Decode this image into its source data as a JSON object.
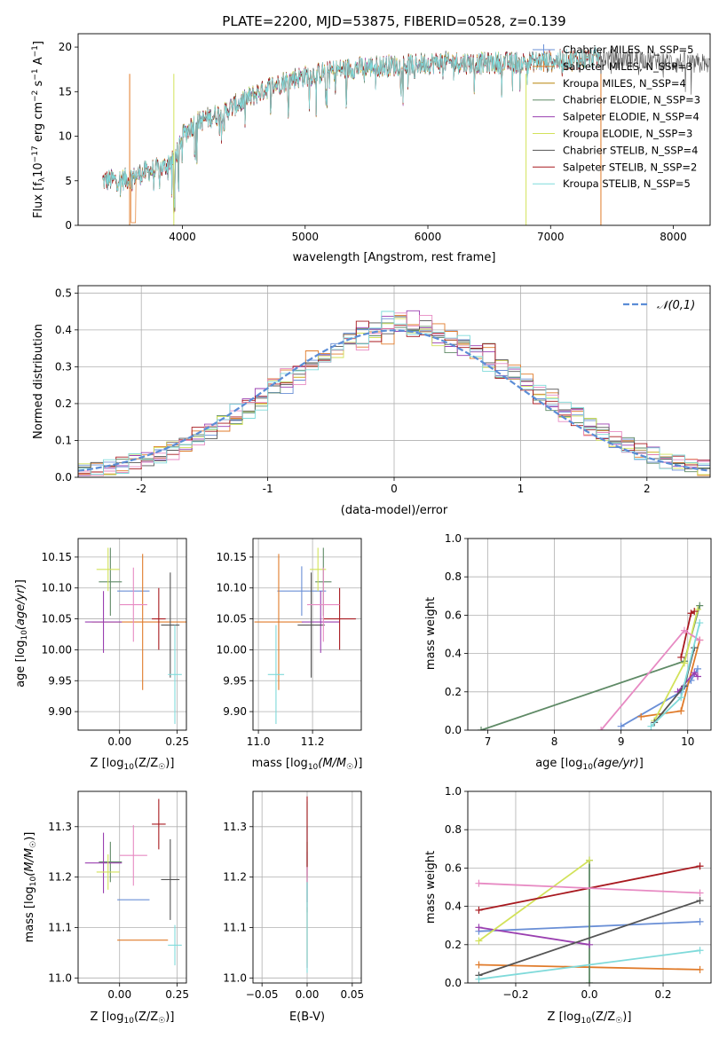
{
  "figure_title": "PLATE=2200, MJD=53875, FIBERID=0528, z=0.139",
  "colors": {
    "palette": [
      "#6a8fd6",
      "#e07b2a",
      "#5f8a66",
      "#9a3fb0",
      "#d2e25a",
      "#555555",
      "#a8191f",
      "#e78ac3",
      "#7fdada"
    ],
    "ncurve": "#5b8dd6",
    "grid": "#b0b0b0"
  },
  "chart_data": [
    {
      "id": "spectrum",
      "type": "line",
      "title": "PLATE=2200, MJD=53875, FIBERID=0528, z=0.139",
      "xlabel": "wavelength [Angstrom, rest frame]",
      "ylabel": "Flux [f_λ 10^-17 erg cm^-2 s^-1 A^-1]",
      "xlim": [
        3150,
        8300
      ],
      "ylim": [
        0,
        21.5
      ],
      "xticks": [
        4000,
        5000,
        6000,
        7000,
        8000
      ],
      "yticks": [
        0,
        5,
        10,
        15,
        20
      ],
      "grid": false,
      "legend_position": "top-right",
      "series": [
        {
          "name": "Chabrier MILES, N_SSP=5",
          "color": "#6a8fd6",
          "range": [
            3350,
            7400
          ]
        },
        {
          "name": "Salpeter MILES, N_SSP=3",
          "color": "#e07b2a",
          "range": [
            3350,
            7400
          ]
        },
        {
          "name": "Kroupa MILES, N_SSP=4",
          "color": "#b8860b",
          "range": [
            3350,
            7400
          ]
        },
        {
          "name": "Chabrier ELODIE, N_SSP=3",
          "color": "#5f8a66",
          "range": [
            3350,
            6800
          ]
        },
        {
          "name": "Salpeter ELODIE, N_SSP=4",
          "color": "#9a3fb0",
          "range": [
            3350,
            6800
          ]
        },
        {
          "name": "Kroupa ELODIE, N_SSP=3",
          "color": "#d2e25a",
          "range": [
            3350,
            6800
          ]
        },
        {
          "name": "Chabrier STELIB, N_SSP=4",
          "color": "#555555",
          "range": [
            3350,
            8300
          ]
        },
        {
          "name": "Salpeter STELIB, N_SSP=2",
          "color": "#a8191f",
          "range": [
            3350,
            7400
          ]
        },
        {
          "name": "Kroupa STELIB, N_SSP=5",
          "color": "#7fdada",
          "range": [
            3350,
            7400
          ]
        }
      ],
      "continuum_points": [
        [
          3350,
          5.0
        ],
        [
          3550,
          5.2
        ],
        [
          3700,
          6.0
        ],
        [
          3850,
          6.5
        ],
        [
          3950,
          8.0
        ],
        [
          4000,
          10.0
        ],
        [
          4100,
          11.5
        ],
        [
          4300,
          12.5
        ],
        [
          4500,
          14.0
        ],
        [
          4700,
          15.5
        ],
        [
          4900,
          16.5
        ],
        [
          5100,
          17.0
        ],
        [
          5300,
          17.5
        ],
        [
          5500,
          17.8
        ],
        [
          5800,
          18.0
        ],
        [
          6100,
          18.3
        ],
        [
          6400,
          18.2
        ],
        [
          6800,
          18.3
        ],
        [
          7100,
          18.5
        ],
        [
          7400,
          18.8
        ],
        [
          7700,
          18.6
        ],
        [
          8000,
          18.3
        ],
        [
          8300,
          18.0
        ]
      ]
    },
    {
      "id": "residuals",
      "type": "histogram",
      "xlabel": "(data-model)/error",
      "ylabel": "Normed distribution",
      "xlim": [
        -2.5,
        2.5
      ],
      "ylim": [
        0,
        0.52
      ],
      "xticks": [
        -2,
        -1,
        0,
        1,
        2
      ],
      "yticks": [
        0.0,
        0.1,
        0.2,
        0.3,
        0.4,
        0.5
      ],
      "grid": true,
      "legend_position": "top-right",
      "legend": [
        "𝒩(0,1)"
      ],
      "bin_width": 0.1
    },
    {
      "id": "age_vs_Z",
      "type": "scatter",
      "xlabel": "Z [log10(Z/Z☉)]",
      "ylabel": "age  [log10(age/yr)]",
      "xlim": [
        -0.18,
        0.29
      ],
      "ylim": [
        9.87,
        10.18
      ],
      "xticks": [
        0.0,
        0.25
      ],
      "xticklabels": [
        "0.00",
        "0.25"
      ],
      "yticks": [
        9.9,
        9.95,
        10.0,
        10.05,
        10.1,
        10.15
      ],
      "grid": true,
      "points": [
        {
          "x": 0.06,
          "y": 10.095,
          "xerr": 0.07,
          "yerr": 0.0
        },
        {
          "x": 0.1,
          "y": 10.045,
          "xerr": 0.22,
          "yerr": 0.11
        },
        {
          "x": -0.04,
          "y": 10.11,
          "xerr": 0.05,
          "yerr": 0.055
        },
        {
          "x": -0.07,
          "y": 10.045,
          "xerr": 0.08,
          "yerr": 0.05
        },
        {
          "x": -0.05,
          "y": 10.13,
          "xerr": 0.05,
          "yerr": 0.035
        },
        {
          "x": 0.22,
          "y": 10.04,
          "xerr": 0.04,
          "yerr": 0.085
        },
        {
          "x": 0.17,
          "y": 10.05,
          "xerr": 0.03,
          "yerr": 0.05
        },
        {
          "x": 0.06,
          "y": 10.073,
          "xerr": 0.06,
          "yerr": 0.06
        },
        {
          "x": 0.24,
          "y": 9.96,
          "xerr": 0.03,
          "yerr": 0.08
        }
      ]
    },
    {
      "id": "age_vs_mass",
      "type": "scatter",
      "xlabel": "mass [log10(M/M☉)]",
      "ylabel": "",
      "xlim": [
        10.98,
        11.38
      ],
      "ylim": [
        9.87,
        10.18
      ],
      "xticks": [
        11.0,
        11.2
      ],
      "xticklabels": [
        "11.0",
        "11.2"
      ],
      "yticks": [
        9.9,
        9.95,
        10.0,
        10.05,
        10.1,
        10.15
      ],
      "grid": true,
      "points": [
        {
          "x": 11.16,
          "y": 10.095,
          "xerr": 0.09,
          "yerr": 0.04
        },
        {
          "x": 11.075,
          "y": 10.045,
          "xerr": 0.09,
          "yerr": 0.11
        },
        {
          "x": 11.24,
          "y": 10.11,
          "xerr": 0.03,
          "yerr": 0.055
        },
        {
          "x": 11.23,
          "y": 10.045,
          "xerr": 0.07,
          "yerr": 0.05
        },
        {
          "x": 11.22,
          "y": 10.13,
          "xerr": 0.03,
          "yerr": 0.035
        },
        {
          "x": 11.195,
          "y": 10.04,
          "xerr": 0.05,
          "yerr": 0.085
        },
        {
          "x": 11.3,
          "y": 10.05,
          "xerr": 0.06,
          "yerr": 0.05
        },
        {
          "x": 11.24,
          "y": 10.073,
          "xerr": 0.06,
          "yerr": 0.06
        },
        {
          "x": 11.065,
          "y": 9.96,
          "xerr": 0.03,
          "yerr": 0.08
        }
      ]
    },
    {
      "id": "mass_weight_vs_age",
      "type": "line",
      "xlabel": "age  [log10(age/yr)]",
      "ylabel": "mass weight",
      "xlim": [
        6.7,
        10.35
      ],
      "ylim": [
        0,
        1.0
      ],
      "xticks": [
        7,
        8,
        9,
        10
      ],
      "yticks": [
        0.0,
        0.2,
        0.4,
        0.6,
        0.8,
        1.0
      ],
      "grid": true,
      "series": [
        {
          "color": "#6a8fd6",
          "x": [
            9.0,
            9.9,
            10.05,
            10.15
          ],
          "y": [
            0.02,
            0.2,
            0.26,
            0.32
          ]
        },
        {
          "color": "#e07b2a",
          "x": [
            9.3,
            9.9,
            10.18
          ],
          "y": [
            0.07,
            0.1,
            0.47
          ]
        },
        {
          "color": "#5f8a66",
          "x": [
            6.9,
            9.95,
            10.18
          ],
          "y": [
            0.0,
            0.36,
            0.65
          ]
        },
        {
          "color": "#9a3fb0",
          "x": [
            9.85,
            10.1,
            10.15
          ],
          "y": [
            0.2,
            0.3,
            0.28
          ]
        },
        {
          "color": "#d2e25a",
          "x": [
            9.5,
            9.95,
            10.15
          ],
          "y": [
            0.05,
            0.35,
            0.63
          ]
        },
        {
          "color": "#555555",
          "x": [
            9.5,
            9.95,
            10.1
          ],
          "y": [
            0.04,
            0.23,
            0.43
          ]
        },
        {
          "color": "#a8191f",
          "x": [
            9.9,
            10.05,
            10.1
          ],
          "y": [
            0.38,
            0.61,
            0.62
          ]
        },
        {
          "color": "#e78ac3",
          "x": [
            8.7,
            9.95,
            10.18
          ],
          "y": [
            0.0,
            0.52,
            0.47
          ]
        },
        {
          "color": "#7fdada",
          "x": [
            9.45,
            9.9,
            10.18
          ],
          "y": [
            0.02,
            0.17,
            0.56
          ]
        }
      ]
    },
    {
      "id": "mass_vs_Z",
      "type": "scatter",
      "xlabel": "Z [log10(Z/Z☉)]",
      "ylabel": "mass [log10(M/M☉)]",
      "xlim": [
        -0.18,
        0.29
      ],
      "ylim": [
        10.99,
        11.37
      ],
      "xticks": [
        0.0,
        0.25
      ],
      "xticklabels": [
        "0.00",
        "0.25"
      ],
      "yticks": [
        11.0,
        11.1,
        11.2,
        11.3
      ],
      "grid": true,
      "points": [
        {
          "x": 0.06,
          "y": 11.155,
          "xerr": 0.07,
          "yerr": 0.0
        },
        {
          "x": 0.1,
          "y": 11.075,
          "xerr": 0.11,
          "yerr": 0.0
        },
        {
          "x": -0.04,
          "y": 11.23,
          "xerr": 0.05,
          "yerr": 0.04
        },
        {
          "x": -0.07,
          "y": 11.228,
          "xerr": 0.08,
          "yerr": 0.06
        },
        {
          "x": -0.05,
          "y": 11.21,
          "xerr": 0.05,
          "yerr": 0.035
        },
        {
          "x": 0.22,
          "y": 11.195,
          "xerr": 0.04,
          "yerr": 0.08
        },
        {
          "x": 0.17,
          "y": 11.305,
          "xerr": 0.03,
          "yerr": 0.05
        },
        {
          "x": 0.06,
          "y": 11.243,
          "xerr": 0.06,
          "yerr": 0.06
        },
        {
          "x": 0.24,
          "y": 11.065,
          "xerr": 0.03,
          "yerr": 0.04
        }
      ]
    },
    {
      "id": "mass_vs_ebv",
      "type": "scatter",
      "xlabel": "E(B-V)",
      "ylabel": "",
      "xlim": [
        -0.06,
        0.06
      ],
      "ylim": [
        10.99,
        11.37
      ],
      "xticks": [
        -0.05,
        0.0,
        0.05
      ],
      "xticklabels": [
        "−0.05",
        "0.00",
        "0.05"
      ],
      "yticks": [
        11.0,
        11.1,
        11.2,
        11.3
      ],
      "grid": true,
      "points": [
        {
          "x": 0.0,
          "y": 11.16,
          "xerr": 0.0,
          "yerr": 0.14
        },
        {
          "x": 0.0,
          "y": 11.08,
          "xerr": 0.0,
          "yerr": 0.06
        },
        {
          "x": 0.0,
          "y": 11.25,
          "xerr": 0.0,
          "yerr": 0.1
        },
        {
          "x": 0.0,
          "y": 11.2,
          "xerr": 0.0,
          "yerr": 0.05
        },
        {
          "x": 0.0,
          "y": 11.15,
          "xerr": 0.0,
          "yerr": 0.12
        },
        {
          "x": 0.0,
          "y": 11.2,
          "xerr": 0.0,
          "yerr": 0.07
        },
        {
          "x": 0.0,
          "y": 11.28,
          "xerr": 0.0,
          "yerr": 0.08
        },
        {
          "x": 0.0,
          "y": 11.12,
          "xerr": 0.0,
          "yerr": 0.1
        },
        {
          "x": 0.0,
          "y": 11.1,
          "xerr": 0.0,
          "yerr": 0.09
        }
      ]
    },
    {
      "id": "mass_weight_vs_Z",
      "type": "line",
      "xlabel": "Z [log10(Z/Z☉)]",
      "ylabel": "mass weight",
      "xlim": [
        -0.33,
        0.33
      ],
      "ylim": [
        0,
        1.0
      ],
      "xticks": [
        -0.2,
        0.0,
        0.2
      ],
      "xticklabels": [
        "−0.2",
        "0.0",
        "0.2"
      ],
      "yticks": [
        0.0,
        0.2,
        0.4,
        0.6,
        0.8,
        1.0
      ],
      "grid": true,
      "series": [
        {
          "color": "#6a8fd6",
          "x": [
            -0.3,
            0.3
          ],
          "y": [
            0.27,
            0.32
          ]
        },
        {
          "color": "#e07b2a",
          "x": [
            -0.3,
            0.3
          ],
          "y": [
            0.095,
            0.07
          ]
        },
        {
          "color": "#5f8a66",
          "x": [
            0.0,
            0.0
          ],
          "y": [
            0.64,
            0.0
          ]
        },
        {
          "color": "#9a3fb0",
          "x": [
            -0.3,
            0.0
          ],
          "y": [
            0.29,
            0.2
          ]
        },
        {
          "color": "#d2e25a",
          "x": [
            -0.3,
            0.0
          ],
          "y": [
            0.22,
            0.64
          ]
        },
        {
          "color": "#555555",
          "x": [
            -0.3,
            0.3
          ],
          "y": [
            0.04,
            0.43
          ]
        },
        {
          "color": "#a8191f",
          "x": [
            -0.3,
            0.3
          ],
          "y": [
            0.38,
            0.61
          ]
        },
        {
          "color": "#e78ac3",
          "x": [
            -0.3,
            0.3
          ],
          "y": [
            0.52,
            0.47
          ]
        },
        {
          "color": "#7fdada",
          "x": [
            -0.3,
            0.3
          ],
          "y": [
            0.02,
            0.17
          ]
        }
      ]
    }
  ]
}
